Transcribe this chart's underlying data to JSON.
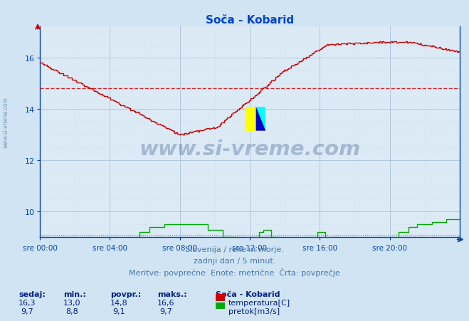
{
  "title": "Soča - Kobarid",
  "bg_color": "#d0e4f4",
  "plot_bg_color": "#dceaf6",
  "grid_color_major": "#b0c8e0",
  "grid_color_minor": "#c8daea",
  "temp_color": "#cc0000",
  "flow_color": "#00aa00",
  "avg_line_color": "#cc0000",
  "avg_flow_color": "#00aa00",
  "axis_color": "#0044aa",
  "title_color": "#0044cc",
  "footer_color": "#4477aa",
  "stats_label_color": "#002288",
  "watermark_color": "#1a3d7a",
  "sidewmark_color": "#4477aa",
  "temp_avg": 14.8,
  "flow_avg": 9.1,
  "ylim_min": 9.0,
  "ylim_max": 17.2,
  "n_points": 288,
  "xlabel_labels": [
    "sre 00:00",
    "sre 04:00",
    "sre 08:00",
    "sre 12:00",
    "sre 16:00",
    "sre 20:00"
  ],
  "yticks": [
    10,
    12,
    14,
    16
  ],
  "footer_line1": "Slovenija / reke in morje.",
  "footer_line2": "zadnji dan / 5 minut.",
  "footer_line3": "Meritve: povprečne  Enote: metrične  Črta: povprečje",
  "legend_title": "Soča - Kobarid",
  "legend_temp": "temperatura[C]",
  "legend_flow": "pretok[m3/s]",
  "stats_headers": [
    "sedaj:",
    "min.:",
    "povpr.:",
    "maks.:"
  ],
  "stats_temp": [
    "16,3",
    "13,0",
    "14,8",
    "16,6"
  ],
  "stats_flow": [
    "9,7",
    "8,8",
    "9,1",
    "9,7"
  ]
}
